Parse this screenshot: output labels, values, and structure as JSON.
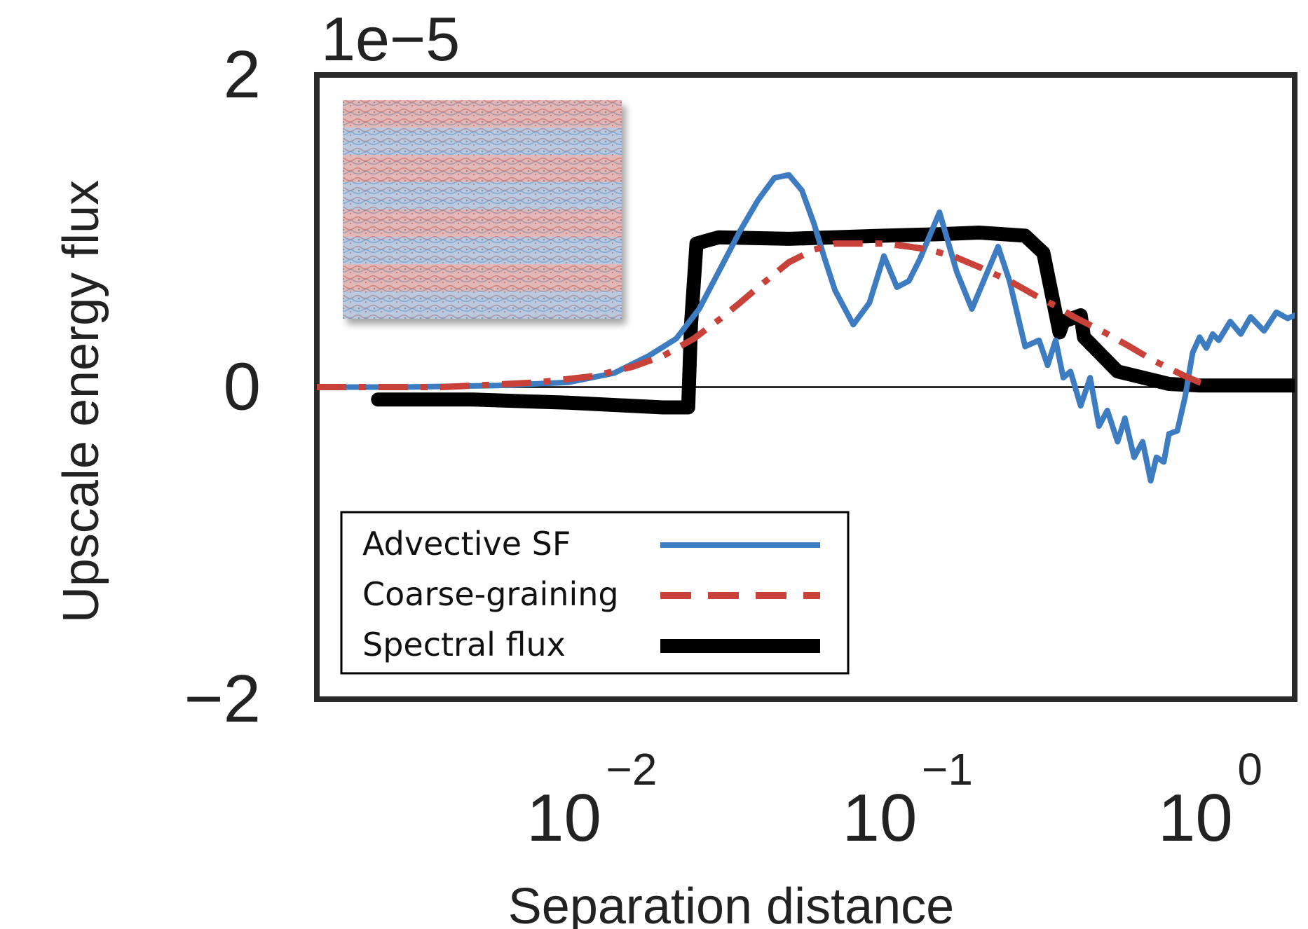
{
  "chart_data": {
    "type": "line",
    "xlabel": "Separation distance",
    "ylabel": "Upscale energy flux",
    "y_scale_text": "1e−5",
    "x_scale": "log",
    "xlim": [
      0.0016,
      2.0
    ],
    "ylim": [
      -2,
      2
    ],
    "grid": false,
    "legend_position": "lower-left",
    "x_ticks": [
      {
        "value": 0.01,
        "base": "10",
        "exp": "−2"
      },
      {
        "value": 0.1,
        "base": "10",
        "exp": "−1"
      },
      {
        "value": 1,
        "base": "10",
        "exp": "0"
      }
    ],
    "y_ticks": [
      {
        "value": 2,
        "label": "2"
      },
      {
        "value": 0,
        "label": "0"
      },
      {
        "value": -2,
        "label": "−2"
      }
    ],
    "zero_line": true,
    "inset": {
      "description_colors": [
        "#c0392b",
        "#2e7bbf"
      ],
      "bands": 4
    },
    "series": [
      {
        "name": "Advective SF",
        "color": "#3d7cc0",
        "style": "solid",
        "x": [
          0.0016,
          0.003,
          0.006,
          0.01,
          0.014,
          0.018,
          0.022,
          0.026,
          0.03,
          0.035,
          0.04,
          0.045,
          0.05,
          0.055,
          0.06,
          0.065,
          0.07,
          0.08,
          0.09,
          0.1,
          0.11,
          0.12,
          0.13,
          0.15,
          0.17,
          0.19,
          0.21,
          0.23,
          0.25,
          0.28,
          0.31,
          0.33,
          0.35,
          0.37,
          0.39,
          0.42,
          0.45,
          0.48,
          0.51,
          0.55,
          0.58,
          0.62,
          0.66,
          0.7,
          0.73,
          0.77,
          0.8,
          0.85,
          0.9,
          0.95,
          1.0,
          1.05,
          1.1,
          1.15,
          1.25,
          1.35,
          1.45,
          1.6,
          1.75,
          1.9,
          2.0
        ],
        "y": [
          0.0,
          0.0,
          0.01,
          0.03,
          0.09,
          0.2,
          0.31,
          0.5,
          0.74,
          1.0,
          1.2,
          1.34,
          1.36,
          1.26,
          1.05,
          0.82,
          0.62,
          0.4,
          0.54,
          0.84,
          0.64,
          0.68,
          0.82,
          1.12,
          0.74,
          0.5,
          0.71,
          0.9,
          0.68,
          0.26,
          0.3,
          0.14,
          0.3,
          0.06,
          0.1,
          -0.12,
          0.06,
          -0.25,
          -0.15,
          -0.35,
          -0.2,
          -0.45,
          -0.35,
          -0.6,
          -0.45,
          -0.48,
          -0.3,
          -0.28,
          -0.06,
          0.22,
          0.32,
          0.25,
          0.34,
          0.3,
          0.42,
          0.34,
          0.45,
          0.36,
          0.48,
          0.44,
          0.46
        ]
      },
      {
        "name": "Coarse-graining",
        "color": "#c8423a",
        "style": "dashdot",
        "x": [
          0.0016,
          0.004,
          0.008,
          0.012,
          0.016,
          0.02,
          0.025,
          0.03,
          0.035,
          0.04,
          0.05,
          0.06,
          0.07,
          0.085,
          0.1,
          0.12,
          0.14,
          0.17,
          0.2,
          0.25,
          0.3,
          0.35,
          0.4,
          0.5,
          0.6,
          0.7,
          0.8,
          0.9,
          1.0,
          1.05,
          1.1
        ],
        "y": [
          0.0,
          0.0,
          0.03,
          0.07,
          0.13,
          0.2,
          0.31,
          0.43,
          0.54,
          0.64,
          0.8,
          0.88,
          0.92,
          0.92,
          0.92,
          0.9,
          0.88,
          0.83,
          0.77,
          0.68,
          0.59,
          0.52,
          0.45,
          0.35,
          0.26,
          0.18,
          0.12,
          0.07,
          0.03,
          0.02,
          0.01
        ]
      },
      {
        "name": "Spectral flux",
        "color": "#000000",
        "style": "solid-thick",
        "x": [
          0.0025,
          0.005,
          0.01,
          0.02,
          0.024,
          0.0245,
          0.0255,
          0.03,
          0.05,
          0.1,
          0.15,
          0.2,
          0.28,
          0.32,
          0.36,
          0.37,
          0.42,
          0.43,
          0.55,
          0.8,
          1.0,
          1.5,
          2.0
        ],
        "y": [
          -0.08,
          -0.08,
          -0.1,
          -0.13,
          -0.13,
          0.4,
          0.92,
          0.96,
          0.95,
          0.97,
          0.98,
          0.99,
          0.97,
          0.86,
          0.35,
          0.42,
          0.46,
          0.32,
          0.1,
          0.02,
          0.01,
          0.01,
          0.01
        ]
      }
    ]
  }
}
